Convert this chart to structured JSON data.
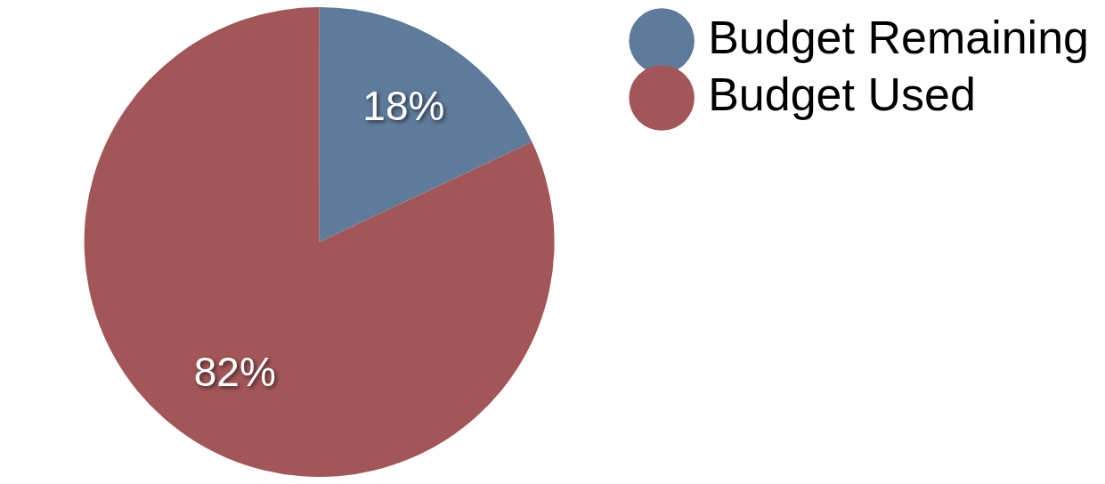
{
  "chart_data": {
    "type": "pie",
    "categories": [
      "Budget Remaining",
      "Budget Used"
    ],
    "values": [
      18,
      82
    ],
    "colors": [
      "#5e7b9b",
      "#a25657"
    ],
    "value_labels": [
      "18%",
      "82%"
    ],
    "legend": "top right"
  }
}
